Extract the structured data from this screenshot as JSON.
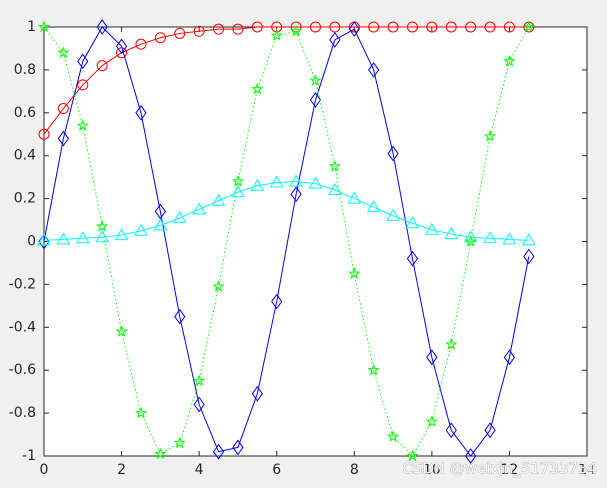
{
  "chart_data": {
    "type": "line",
    "x": [
      0,
      0.5,
      1,
      1.5,
      2,
      2.5,
      3,
      3.5,
      4,
      4.5,
      5,
      5.5,
      6,
      6.5,
      7,
      7.5,
      8,
      8.5,
      9,
      9.5,
      10,
      10.5,
      11,
      11.5,
      12,
      12.5
    ],
    "series": [
      {
        "color": "#ff0000",
        "linestyle": "solid",
        "marker": "circle",
        "values": [
          0.5,
          0.62,
          0.73,
          0.82,
          0.88,
          0.92,
          0.95,
          0.97,
          0.98,
          0.99,
          0.99,
          1,
          1,
          1,
          1,
          1,
          1,
          1,
          1,
          1,
          1,
          1,
          1,
          1,
          1,
          1
        ]
      },
      {
        "color": "#0000ff",
        "linestyle": "solid",
        "marker": "diamond",
        "values": [
          0,
          0.48,
          0.84,
          1,
          0.91,
          0.6,
          0.14,
          -0.35,
          -0.76,
          -0.98,
          -0.96,
          -0.71,
          -0.28,
          0.22,
          0.66,
          0.94,
          0.99,
          0.8,
          0.41,
          -0.08,
          -0.54,
          -0.88,
          -1,
          -0.88,
          -0.54,
          -0.07
        ]
      },
      {
        "color": "#00ffff",
        "linestyle": "solid",
        "marker": "triangle",
        "values": [
          0.005,
          0.01,
          0.015,
          0.02,
          0.03,
          0.05,
          0.075,
          0.11,
          0.15,
          0.19,
          0.23,
          0.26,
          0.275,
          0.28,
          0.27,
          0.24,
          0.2,
          0.16,
          0.12,
          0.085,
          0.055,
          0.035,
          0.02,
          0.015,
          0.01,
          0.005
        ]
      },
      {
        "color": "#00ff00",
        "linestyle": "dotted",
        "marker": "pentagram",
        "values": [
          1,
          0.88,
          0.54,
          0.07,
          -0.42,
          -0.8,
          -0.99,
          -0.94,
          -0.65,
          -0.21,
          0.28,
          0.71,
          0.96,
          0.98,
          0.75,
          0.35,
          -0.15,
          -0.6,
          -0.91,
          -1,
          -0.84,
          -0.48,
          0,
          0.49,
          0.84,
          1
        ]
      }
    ],
    "xlim": [
      0,
      14
    ],
    "xticks": [
      0,
      2,
      4,
      6,
      8,
      10,
      12,
      14
    ],
    "ylim": [
      -1,
      1
    ],
    "yticks": [
      -1,
      -0.8,
      -0.6,
      -0.4,
      -0.2,
      0,
      0.2,
      0.4,
      0.6,
      0.8,
      1
    ],
    "box": true,
    "grid": false
  },
  "watermark": "CSDN @weixin_51733734"
}
